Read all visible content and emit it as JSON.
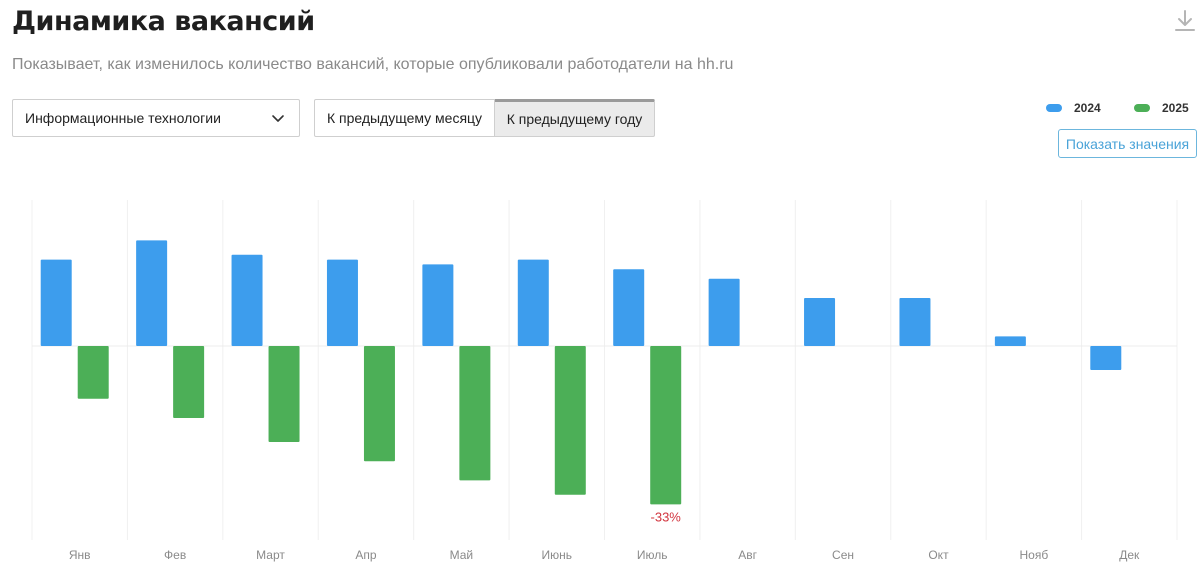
{
  "header": {
    "title": "Динамика вакансий",
    "subtitle": "Показывает, как изменилось количество вакансий, которые опубликовали работодатели на hh.ru",
    "download_icon": "download-icon"
  },
  "filter": {
    "selected": "Информационные технологии",
    "icon": "chevron-down-icon"
  },
  "comparison": {
    "options": [
      "К предыдущему месяцу",
      "К предыдущему году"
    ],
    "active_index": 1
  },
  "show_values_label": "Показать значения",
  "colors": {
    "series_2024": "#3d9ded",
    "series_2025": "#4caf57",
    "label_negative": "#d2353f"
  },
  "chart_data": {
    "type": "bar",
    "categories": [
      "Янв",
      "Фев",
      "Март",
      "Апр",
      "Май",
      "Июнь",
      "Июль",
      "Авг",
      "Сен",
      "Окт",
      "Нояб",
      "Дек"
    ],
    "series": [
      {
        "name": "2024",
        "values": [
          18,
          22,
          19,
          18,
          17,
          18,
          16,
          14,
          10,
          10,
          2,
          -5
        ]
      },
      {
        "name": "2025",
        "values": [
          -11,
          -15,
          -20,
          -24,
          -28,
          -31,
          -33,
          null,
          null,
          null,
          null,
          null
        ]
      }
    ],
    "annotations": [
      {
        "series": "2025",
        "category": "Июль",
        "text": "-33%"
      }
    ],
    "ylim": [
      -40,
      30
    ],
    "grid": true,
    "legend_position": "top-right",
    "xlabel": "",
    "ylabel": ""
  }
}
